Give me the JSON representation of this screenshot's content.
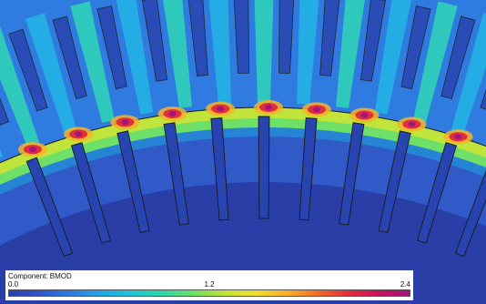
{
  "colorbar": {
    "title": "Component: BMOD",
    "min_label": "0.0",
    "mid_label": "1.2",
    "max_label": "2.4",
    "stops": [
      "#2a3ea8",
      "#2f55c8",
      "#2f7be0",
      "#23a6e4",
      "#21c4d0",
      "#2fd6a6",
      "#6ee068",
      "#c0e43a",
      "#f2e02c",
      "#f7b229",
      "#f0702a",
      "#e12f3a",
      "#c7145c",
      "#a3147f"
    ]
  },
  "plot": {
    "colors": {
      "background": "#2a3ea8",
      "core": "#2f5ac8",
      "stator_yoke": "#2f7be0",
      "stator_tooth": "#23b2e4",
      "stator_tooth_lit": "#2fd2b8",
      "airgap_band": "#c0e43a",
      "airgap_band_inner": "#6ee068",
      "rotor_tooth_root": "#1fa8e0",
      "hotspot_core": "#a3147f",
      "hotspot_mid": "#e12f3a",
      "hotspot_outer": "#f7b229",
      "slot_fill": "#2844b0",
      "outline": "#1a1a1a"
    }
  }
}
